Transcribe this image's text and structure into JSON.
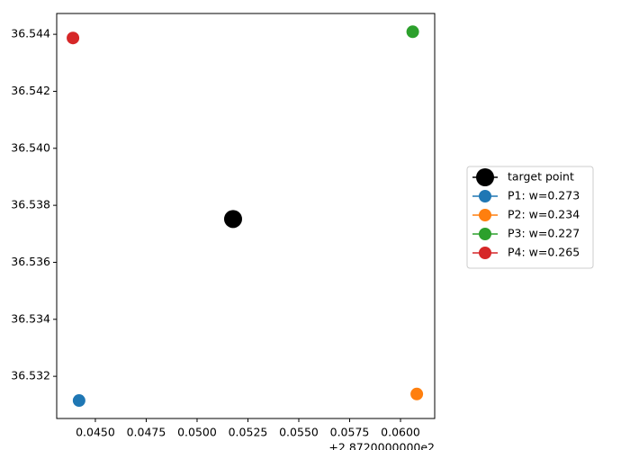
{
  "chart_data": {
    "type": "scatter",
    "offset_text": "+2.8720000000e2",
    "series": [
      {
        "name": "target point",
        "color": "#000000",
        "size": 10,
        "x": [
          287.25177
        ],
        "y": [
          36.53752
        ]
      },
      {
        "name": "P1: w=0.273",
        "color": "#1f77b4",
        "size": 7,
        "x": [
          287.2442
        ],
        "y": [
          36.53115
        ]
      },
      {
        "name": "P2: w=0.234",
        "color": "#ff7f0e",
        "size": 7,
        "x": [
          287.2608
        ],
        "y": [
          36.53138
        ]
      },
      {
        "name": "P3: w=0.227",
        "color": "#2ca02c",
        "size": 7,
        "x": [
          287.2606
        ],
        "y": [
          36.54409
        ]
      },
      {
        "name": "P4: w=0.265",
        "color": "#d62728",
        "size": 7,
        "x": [
          287.2439
        ],
        "y": [
          36.54387
        ]
      }
    ],
    "xlim": [
      287.2431,
      287.26168
    ],
    "xticks": [
      {
        "value": 287.245,
        "label": "0.0450"
      },
      {
        "value": 287.2475,
        "label": "0.0475"
      },
      {
        "value": 287.25,
        "label": "0.0500"
      },
      {
        "value": 287.2525,
        "label": "0.0525"
      },
      {
        "value": 287.255,
        "label": "0.0550"
      },
      {
        "value": 287.2575,
        "label": "0.0575"
      },
      {
        "value": 287.26,
        "label": "0.0600"
      }
    ],
    "ylim": [
      36.53052,
      36.54473
    ],
    "yticks": [
      36.532,
      36.534,
      36.536,
      36.538,
      {
        "value": 36.54,
        "label": "36.540"
      },
      36.542,
      36.544
    ],
    "legend": "right"
  }
}
